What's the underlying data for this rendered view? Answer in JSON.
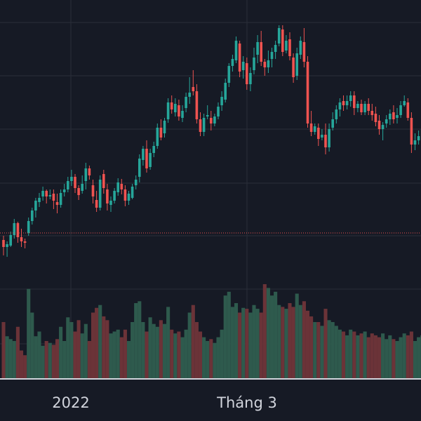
{
  "chart_data": {
    "type": "candlestick",
    "x_tick_labels": [
      "2022",
      "Tháng 3"
    ],
    "price_line_visible": true,
    "grid": true,
    "legend": "none",
    "colors": {
      "background": "#161a25",
      "up": "#26a69a",
      "down": "#ef5350",
      "volume_up": "#2e5a4d",
      "volume_down": "#6b3338",
      "grid": "#2a2e39",
      "price_line": "#ef5350",
      "axis_line": "#d1d4dc",
      "text": "#d1d4dc"
    },
    "candles": [
      [
        342,
        336,
        364,
        352,
        60
      ],
      [
        352,
        344,
        366,
        348,
        45
      ],
      [
        350,
        330,
        352,
        335,
        42
      ],
      [
        335,
        312,
        340,
        318,
        40
      ],
      [
        318,
        316,
        346,
        338,
        55
      ],
      [
        338,
        326,
        352,
        344,
        30
      ],
      [
        344,
        340,
        354,
        346,
        25
      ],
      [
        332,
        310,
        336,
        315,
        95
      ],
      [
        315,
        296,
        320,
        300,
        70
      ],
      [
        300,
        282,
        310,
        286,
        45
      ],
      [
        288,
        275,
        295,
        282,
        50
      ],
      [
        280,
        266,
        286,
        272,
        35
      ],
      [
        272,
        270,
        290,
        280,
        40
      ],
      [
        280,
        270,
        284,
        278,
        38
      ],
      [
        276,
        270,
        298,
        286,
        36
      ],
      [
        288,
        276,
        304,
        292,
        42
      ],
      [
        292,
        270,
        296,
        275,
        55
      ],
      [
        274,
        262,
        280,
        270,
        40
      ],
      [
        270,
        252,
        274,
        258,
        65
      ],
      [
        258,
        242,
        265,
        252,
        60
      ],
      [
        252,
        248,
        275,
        268,
        50
      ],
      [
        268,
        264,
        285,
        278,
        62
      ],
      [
        272,
        250,
        276,
        262,
        48
      ],
      [
        258,
        232,
        270,
        240,
        58
      ],
      [
        240,
        236,
        256,
        250,
        40
      ],
      [
        264,
        256,
        290,
        280,
        70
      ],
      [
        285,
        272,
        302,
        296,
        75
      ],
      [
        296,
        250,
        300,
        256,
        78
      ],
      [
        248,
        242,
        276,
        268,
        66
      ],
      [
        270,
        262,
        300,
        290,
        62
      ],
      [
        292,
        280,
        302,
        286,
        48
      ],
      [
        286,
        268,
        290,
        272,
        50
      ],
      [
        274,
        254,
        279,
        260,
        52
      ],
      [
        262,
        255,
        277,
        270,
        44
      ],
      [
        270,
        264,
        294,
        286,
        52
      ],
      [
        286,
        272,
        292,
        276,
        40
      ],
      [
        282,
        262,
        284,
        266,
        60
      ],
      [
        264,
        250,
        270,
        256,
        80
      ],
      [
        252,
        220,
        260,
        226,
        82
      ],
      [
        228,
        208,
        236,
        212,
        60
      ],
      [
        212,
        200,
        246,
        240,
        50
      ],
      [
        238,
        212,
        242,
        218,
        65
      ],
      [
        218,
        202,
        224,
        208,
        58
      ],
      [
        208,
        176,
        212,
        182,
        55
      ],
      [
        182,
        170,
        200,
        196,
        62
      ],
      [
        190,
        168,
        196,
        172,
        58
      ],
      [
        170,
        140,
        175,
        146,
        76
      ],
      [
        146,
        136,
        162,
        156,
        52
      ],
      [
        160,
        140,
        166,
        148,
        48
      ],
      [
        150,
        142,
        172,
        166,
        50
      ],
      [
        168,
        150,
        174,
        158,
        44
      ],
      [
        154,
        132,
        160,
        138,
        52
      ],
      [
        138,
        110,
        148,
        132,
        70
      ],
      [
        124,
        100,
        136,
        130,
        78
      ],
      [
        130,
        120,
        176,
        170,
        60
      ],
      [
        170,
        160,
        194,
        188,
        50
      ],
      [
        188,
        162,
        194,
        168,
        44
      ],
      [
        166,
        150,
        170,
        164,
        40
      ],
      [
        168,
        158,
        186,
        176,
        42
      ],
      [
        176,
        162,
        180,
        166,
        38
      ],
      [
        166,
        146,
        170,
        152,
        44
      ],
      [
        150,
        130,
        158,
        138,
        52
      ],
      [
        142,
        112,
        146,
        118,
        88
      ],
      [
        118,
        90,
        124,
        94,
        92
      ],
      [
        94,
        78,
        102,
        84,
        76
      ],
      [
        86,
        52,
        90,
        58,
        80
      ],
      [
        62,
        58,
        110,
        102,
        70
      ],
      [
        100,
        80,
        112,
        88,
        75
      ],
      [
        90,
        82,
        128,
        120,
        74
      ],
      [
        120,
        96,
        130,
        104,
        70
      ],
      [
        100,
        68,
        106,
        82,
        78
      ],
      [
        78,
        50,
        90,
        60,
        74
      ],
      [
        60,
        44,
        94,
        88,
        70
      ],
      [
        88,
        84,
        108,
        96,
        100
      ],
      [
        96,
        72,
        104,
        86,
        96
      ],
      [
        84,
        68,
        96,
        74,
        88
      ],
      [
        74,
        58,
        84,
        64,
        92
      ],
      [
        62,
        36,
        66,
        40,
        78
      ],
      [
        42,
        36,
        80,
        74,
        76
      ],
      [
        72,
        50,
        76,
        58,
        74
      ],
      [
        56,
        46,
        86,
        80,
        80
      ],
      [
        82,
        76,
        118,
        110,
        76
      ],
      [
        108,
        68,
        114,
        76,
        90
      ],
      [
        78,
        52,
        84,
        58,
        78
      ],
      [
        60,
        40,
        96,
        88,
        82
      ],
      [
        88,
        80,
        182,
        176,
        72
      ],
      [
        176,
        158,
        194,
        188,
        66
      ],
      [
        188,
        176,
        192,
        180,
        60
      ],
      [
        182,
        176,
        208,
        198,
        60
      ],
      [
        196,
        184,
        200,
        192,
        56
      ],
      [
        192,
        176,
        220,
        210,
        74
      ],
      [
        210,
        176,
        216,
        184,
        62
      ],
      [
        182,
        160,
        186,
        170,
        60
      ],
      [
        170,
        150,
        176,
        156,
        56
      ],
      [
        156,
        140,
        166,
        146,
        52
      ],
      [
        144,
        136,
        158,
        150,
        50
      ],
      [
        150,
        136,
        156,
        144,
        46
      ],
      [
        144,
        130,
        152,
        136,
        52
      ],
      [
        136,
        130,
        164,
        154,
        50
      ],
      [
        154,
        144,
        160,
        148,
        46
      ],
      [
        148,
        142,
        164,
        160,
        48
      ],
      [
        160,
        144,
        164,
        148,
        50
      ],
      [
        148,
        140,
        164,
        158,
        44
      ],
      [
        158,
        148,
        172,
        164,
        48
      ],
      [
        162,
        152,
        180,
        174,
        46
      ],
      [
        172,
        164,
        192,
        184,
        44
      ],
      [
        184,
        174,
        200,
        178,
        48
      ],
      [
        176,
        164,
        182,
        170,
        42
      ],
      [
        170,
        156,
        178,
        162,
        46
      ],
      [
        160,
        150,
        176,
        170,
        42
      ],
      [
        168,
        154,
        176,
        164,
        40
      ],
      [
        164,
        144,
        168,
        150,
        44
      ],
      [
        150,
        136,
        152,
        144,
        48
      ],
      [
        146,
        140,
        172,
        168,
        46
      ],
      [
        168,
        160,
        218,
        206,
        50
      ],
      [
        206,
        190,
        214,
        200,
        40
      ],
      [
        200,
        186,
        206,
        194,
        44
      ],
      [
        194,
        176,
        198,
        184,
        46
      ],
      [
        184,
        172,
        202,
        196,
        44
      ],
      [
        196,
        180,
        220,
        212,
        50
      ]
    ]
  }
}
